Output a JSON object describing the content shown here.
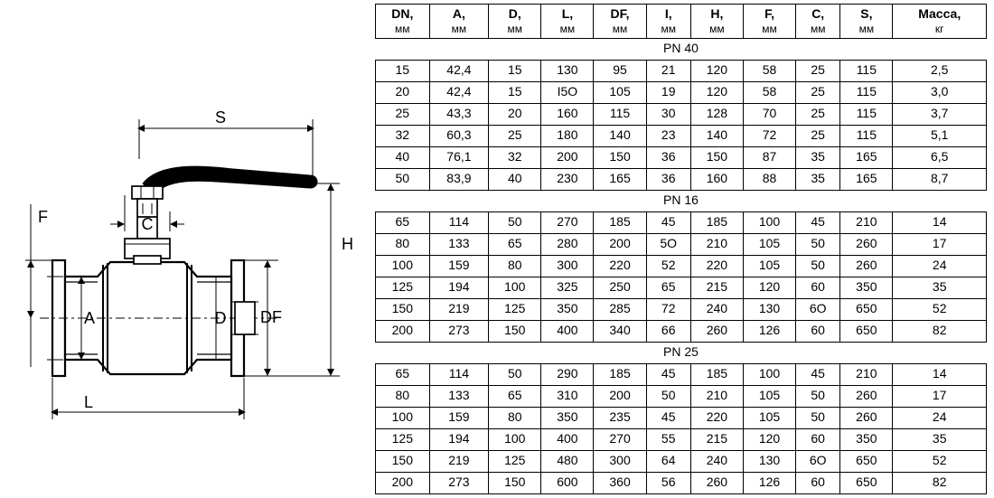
{
  "diagram": {
    "labels": {
      "S": "S",
      "H": "H",
      "F": "F",
      "C": "C",
      "A": "A",
      "D": "D",
      "DF": "DF",
      "L": "L"
    },
    "stroke": "#000000",
    "stroke_thin": 1,
    "stroke_med": 1.7,
    "stroke_heavy": 3,
    "dash": "5 4"
  },
  "table": {
    "columns": [
      {
        "top": "DN,",
        "sub": "мм"
      },
      {
        "top": "A,",
        "sub": "мм"
      },
      {
        "top": "D,",
        "sub": "мм"
      },
      {
        "top": "L,",
        "sub": "мм"
      },
      {
        "top": "DF,",
        "sub": "мм"
      },
      {
        "top": "I,",
        "sub": "мм"
      },
      {
        "top": "H,",
        "sub": "мм"
      },
      {
        "top": "F,",
        "sub": "мм"
      },
      {
        "top": "C,",
        "sub": "мм"
      },
      {
        "top": "S,",
        "sub": "мм"
      },
      {
        "top": "Масса,",
        "sub": "кг"
      }
    ],
    "sections": [
      {
        "label": "PN 40",
        "rows": [
          [
            "15",
            "42,4",
            "15",
            "130",
            "95",
            "21",
            "120",
            "58",
            "25",
            "115",
            "2,5"
          ],
          [
            "20",
            "42,4",
            "15",
            "I5O",
            "105",
            "19",
            "120",
            "58",
            "25",
            "115",
            "3,0"
          ],
          [
            "25",
            "43,3",
            "20",
            "160",
            "115",
            "30",
            "128",
            "70",
            "25",
            "115",
            "3,7"
          ],
          [
            "32",
            "60,3",
            "25",
            "180",
            "140",
            "23",
            "140",
            "72",
            "25",
            "115",
            "5,1"
          ],
          [
            "40",
            "76,1",
            "32",
            "200",
            "150",
            "36",
            "150",
            "87",
            "35",
            "165",
            "6,5"
          ],
          [
            "50",
            "83,9",
            "40",
            "230",
            "165",
            "36",
            "160",
            "88",
            "35",
            "165",
            "8,7"
          ]
        ]
      },
      {
        "label": "PN 16",
        "rows": [
          [
            "65",
            "114",
            "50",
            "270",
            "185",
            "45",
            "185",
            "100",
            "45",
            "210",
            "14"
          ],
          [
            "80",
            "133",
            "65",
            "280",
            "200",
            "5O",
            "210",
            "105",
            "50",
            "260",
            "17"
          ],
          [
            "100",
            "159",
            "80",
            "300",
            "220",
            "52",
            "220",
            "105",
            "50",
            "260",
            "24"
          ],
          [
            "125",
            "194",
            "100",
            "325",
            "250",
            "65",
            "215",
            "120",
            "60",
            "350",
            "35"
          ],
          [
            "150",
            "219",
            "125",
            "350",
            "285",
            "72",
            "240",
            "130",
            "6O",
            "650",
            "52"
          ],
          [
            "200",
            "273",
            "150",
            "400",
            "340",
            "66",
            "260",
            "126",
            "60",
            "650",
            "82"
          ]
        ]
      },
      {
        "label": "PN 25",
        "rows": [
          [
            "65",
            "114",
            "50",
            "290",
            "185",
            "45",
            "185",
            "100",
            "45",
            "210",
            "14"
          ],
          [
            "80",
            "133",
            "65",
            "310",
            "200",
            "50",
            "210",
            "105",
            "50",
            "260",
            "17"
          ],
          [
            "100",
            "159",
            "80",
            "350",
            "235",
            "45",
            "220",
            "105",
            "50",
            "260",
            "24"
          ],
          [
            "125",
            "194",
            "100",
            "400",
            "270",
            "55",
            "215",
            "120",
            "60",
            "350",
            "35"
          ],
          [
            "150",
            "219",
            "125",
            "480",
            "300",
            "64",
            "240",
            "130",
            "6O",
            "650",
            "52"
          ],
          [
            "200",
            "273",
            "150",
            "600",
            "360",
            "56",
            "260",
            "126",
            "60",
            "650",
            "82"
          ]
        ]
      }
    ]
  }
}
